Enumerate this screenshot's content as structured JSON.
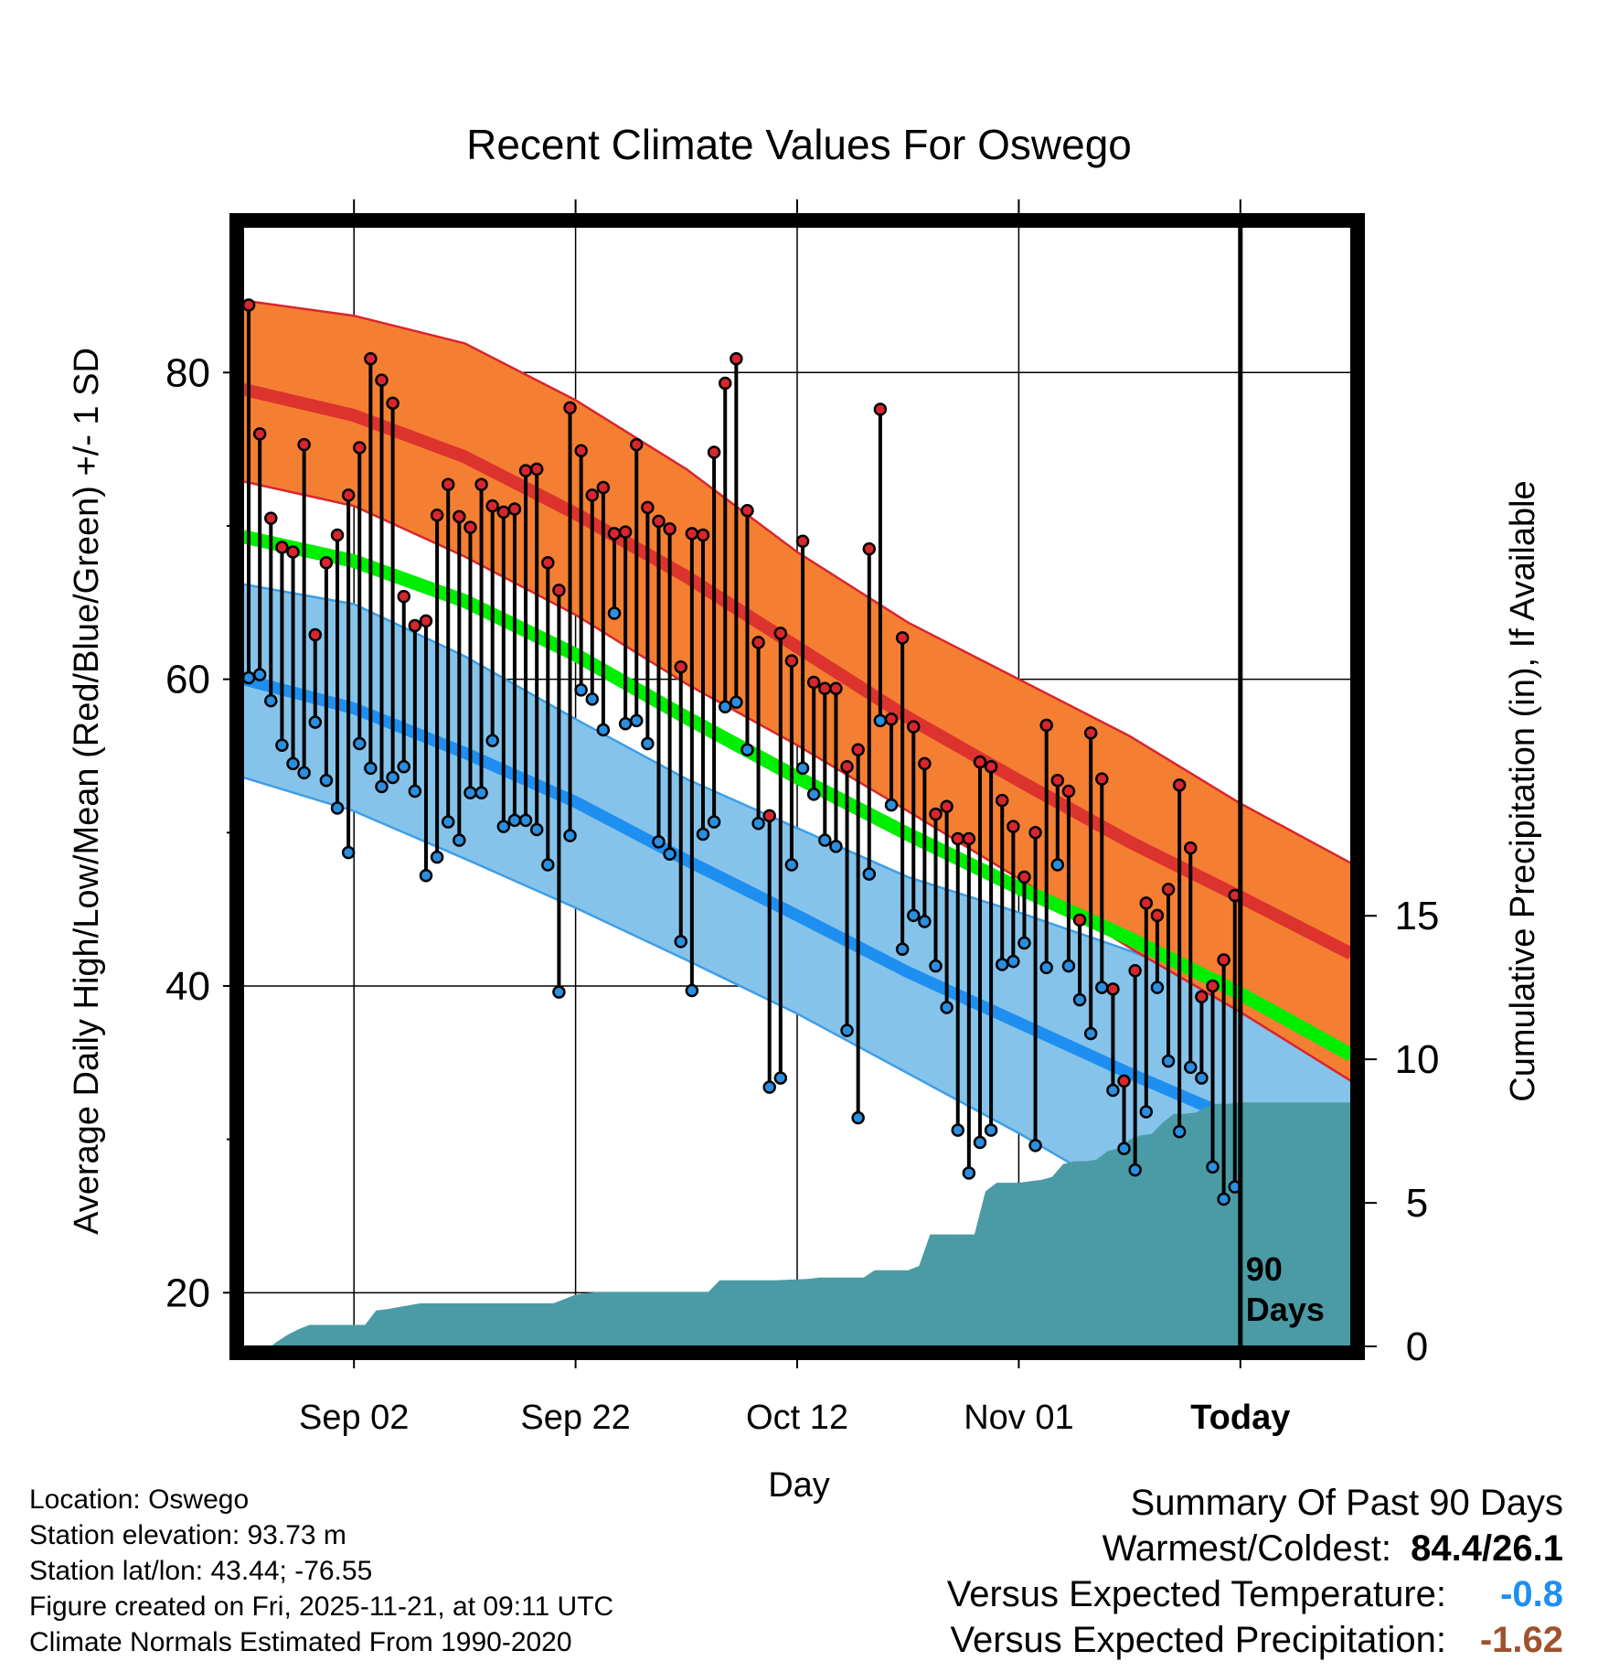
{
  "chart_data": {
    "type": "line",
    "title": "Recent Climate Values For Oswego",
    "xlabel": "Day",
    "ylabel": "Average Daily High/Low/Mean (Red/Blue/Green) +/- 1 SD",
    "y2label": "Cumulative Precipitation (in), If Available",
    "ylim": [
      16.5,
      89.5
    ],
    "y2lim": [
      0,
      39
    ],
    "xlim": [
      0,
      100
    ],
    "yticks": [
      20,
      40,
      60,
      80
    ],
    "yticks_minor": [
      30,
      50,
      70
    ],
    "y2ticks": [
      0,
      5,
      10,
      15
    ],
    "xticks": [
      {
        "x": 10,
        "label": "Sep 02"
      },
      {
        "x": 30,
        "label": "Sep 22"
      },
      {
        "x": 50,
        "label": "Oct 12"
      },
      {
        "x": 70,
        "label": "Nov 01"
      },
      {
        "x": 90,
        "label": "Today"
      }
    ],
    "today_marker": {
      "x": 90,
      "label_line1": "90",
      "label_line2": "Days"
    },
    "normal_high": {
      "x": [
        0,
        10,
        20,
        30,
        40,
        50,
        60,
        70,
        80,
        90,
        100
      ],
      "mean": [
        78.9,
        77.2,
        74.5,
        70.8,
        66.7,
        62.1,
        57.5,
        53.4,
        49.4,
        45.8,
        42.1
      ],
      "upper": [
        84.7,
        83.7,
        81.9,
        78.2,
        73.7,
        68.3,
        63.7,
        60.0,
        56.3,
        51.9,
        48.0
      ],
      "lower": [
        72.9,
        71.3,
        68.0,
        64.2,
        59.7,
        55.7,
        51.4,
        47.0,
        42.5,
        38.3,
        33.8
      ]
    },
    "normal_mean": {
      "x": [
        0,
        10,
        20,
        30,
        40,
        50,
        60,
        70,
        80,
        90,
        100
      ],
      "values": [
        69.3,
        67.7,
        65.1,
        61.6,
        57.5,
        53.6,
        49.9,
        46.4,
        43.1,
        39.5,
        35.5
      ]
    },
    "normal_low": {
      "x": [
        0,
        10,
        20,
        30,
        40,
        50,
        60,
        70,
        80,
        90,
        100
      ],
      "mean": [
        60.0,
        58.1,
        55.2,
        52.0,
        48.2,
        44.6,
        40.9,
        37.6,
        34.3,
        31.2,
        28.3
      ],
      "upper": [
        66.2,
        64.9,
        61.5,
        57.4,
        53.5,
        50.3,
        47.1,
        44.8,
        42.3,
        39.5,
        37.6
      ],
      "lower": [
        53.6,
        51.4,
        48.3,
        45.1,
        41.7,
        38.2,
        34.3,
        30.4,
        26.2,
        21.5,
        17.0
      ]
    },
    "observed": {
      "day": [
        0,
        1,
        2,
        3,
        4,
        5,
        6,
        7,
        8,
        9,
        10,
        11,
        12,
        13,
        14,
        15,
        16,
        17,
        18,
        19,
        20,
        21,
        22,
        23,
        24,
        25,
        26,
        27,
        28,
        29,
        30,
        31,
        32,
        33,
        34,
        35,
        36,
        37,
        38,
        39,
        40,
        41,
        42,
        43,
        44,
        45,
        46,
        47,
        48,
        49,
        50,
        51,
        52,
        53,
        54,
        55,
        56,
        57,
        58,
        59,
        60,
        61,
        62,
        63,
        64,
        65,
        66,
        67,
        68,
        69,
        70,
        71,
        72,
        73,
        74,
        75,
        76,
        77,
        78,
        79,
        80,
        81,
        82,
        83,
        84,
        85,
        86,
        87,
        88,
        89
      ],
      "high": [
        84.4,
        76.0,
        70.5,
        68.6,
        68.3,
        75.3,
        62.9,
        67.6,
        69.4,
        72.0,
        75.1,
        80.9,
        79.5,
        78.0,
        65.4,
        63.5,
        63.8,
        70.7,
        72.7,
        70.6,
        69.9,
        72.7,
        71.3,
        70.9,
        71.1,
        73.6,
        73.7,
        67.6,
        65.8,
        77.7,
        74.9,
        72.0,
        72.5,
        69.5,
        69.6,
        75.3,
        71.2,
        70.3,
        69.8,
        60.8,
        69.5,
        69.4,
        74.8,
        79.3,
        80.9,
        71.0,
        62.4,
        51.1,
        63.0,
        61.2,
        69.0,
        59.8,
        59.4,
        59.4,
        54.3,
        55.4,
        68.5,
        77.6,
        57.4,
        62.7,
        56.9,
        54.5,
        51.2,
        51.7,
        49.6,
        49.6,
        54.6,
        54.3,
        52.1,
        50.4,
        47.1,
        50.0,
        57.0,
        53.4,
        52.7,
        44.3,
        56.5,
        53.5,
        39.8,
        33.8,
        41.0,
        45.4,
        44.6,
        46.3,
        53.1,
        49.0,
        39.3,
        40.0,
        41.7,
        45.9
      ],
      "low": [
        60.1,
        60.3,
        58.6,
        55.7,
        54.5,
        53.9,
        57.2,
        53.4,
        51.6,
        48.7,
        55.8,
        54.2,
        53.0,
        53.6,
        54.3,
        52.7,
        47.2,
        48.4,
        50.7,
        49.5,
        52.6,
        52.6,
        56.0,
        50.4,
        50.8,
        50.8,
        50.2,
        47.9,
        39.6,
        49.8,
        59.3,
        58.7,
        56.7,
        64.3,
        57.1,
        57.3,
        55.8,
        49.4,
        48.6,
        42.9,
        39.7,
        49.9,
        50.7,
        58.2,
        58.5,
        55.4,
        50.6,
        33.4,
        34.0,
        47.9,
        54.2,
        52.5,
        49.5,
        49.1,
        37.1,
        31.4,
        47.3,
        57.3,
        51.8,
        42.4,
        44.6,
        44.2,
        41.3,
        38.6,
        30.6,
        27.8,
        29.8,
        30.6,
        41.4,
        41.6,
        42.8,
        29.6,
        41.2,
        47.9,
        41.3,
        39.1,
        36.9,
        39.9,
        33.2,
        29.4,
        28.0,
        31.8,
        39.9,
        35.1,
        30.5,
        34.7,
        34.0,
        28.2,
        26.1,
        26.9
      ]
    },
    "precip": {
      "day": [
        2.5,
        3,
        4,
        5,
        6,
        7,
        10,
        11,
        12,
        13,
        16,
        17,
        28,
        29,
        30,
        31,
        32,
        33,
        34,
        42,
        43,
        44,
        45,
        46,
        47,
        48,
        51,
        52,
        53,
        54,
        55,
        56,
        57,
        58,
        60,
        61,
        62,
        63,
        66,
        67,
        68,
        69,
        70,
        71,
        72,
        73,
        74,
        75,
        76,
        77,
        78,
        79,
        80,
        81,
        82,
        83,
        84,
        85,
        86,
        87,
        88,
        89,
        90,
        100
      ],
      "values": [
        0,
        0.15,
        0.4,
        0.6,
        0.75,
        0.75,
        0.75,
        0.75,
        1.25,
        1.3,
        1.5,
        1.5,
        1.5,
        1.65,
        1.8,
        1.85,
        1.9,
        1.9,
        1.9,
        1.9,
        2.3,
        2.3,
        2.3,
        2.3,
        2.3,
        2.3,
        2.35,
        2.4,
        2.4,
        2.4,
        2.4,
        2.4,
        2.65,
        2.65,
        2.65,
        2.8,
        3.9,
        3.9,
        3.9,
        5.4,
        5.7,
        5.7,
        5.7,
        5.75,
        5.8,
        5.9,
        6.35,
        6.45,
        6.45,
        6.5,
        6.8,
        6.9,
        7.2,
        7.35,
        7.4,
        7.8,
        8.1,
        8.1,
        8.15,
        8.35,
        8.45,
        8.45,
        8.5,
        8.5
      ]
    }
  },
  "footer": {
    "location": "Location: Oswego",
    "elevation": "Station elevation: 93.73 m",
    "latlon": "Station lat/lon: 43.44; -76.55",
    "created": "Figure created on Fri, 2025-11-21, at 09:11 UTC",
    "normals": "Climate Normals Estimated From 1990-2020"
  },
  "summary": {
    "title": "Summary Of Past 90 Days",
    "warmest_label": "Warmest/Coldest:",
    "warmest_value": "84.4/26.1",
    "temp_label": "Versus Expected Temperature:",
    "temp_value": "-0.8",
    "precip_label": "Versus Expected Precipitation:",
    "precip_value": "-1.62"
  },
  "colors": {
    "high_band": "#f47f32",
    "high_line": "#d8262e",
    "low_band": "#86c3ea",
    "low_line": "#1e8ff0",
    "low_band_edge": "#3d9ee8",
    "mean_line": "#00ee00",
    "precip": "#4a9ba5",
    "high_dot": "#d8262e",
    "low_dot": "#2a8fe0",
    "temp_value": "#1e8ff0",
    "precip_value": "#a0522d"
  }
}
